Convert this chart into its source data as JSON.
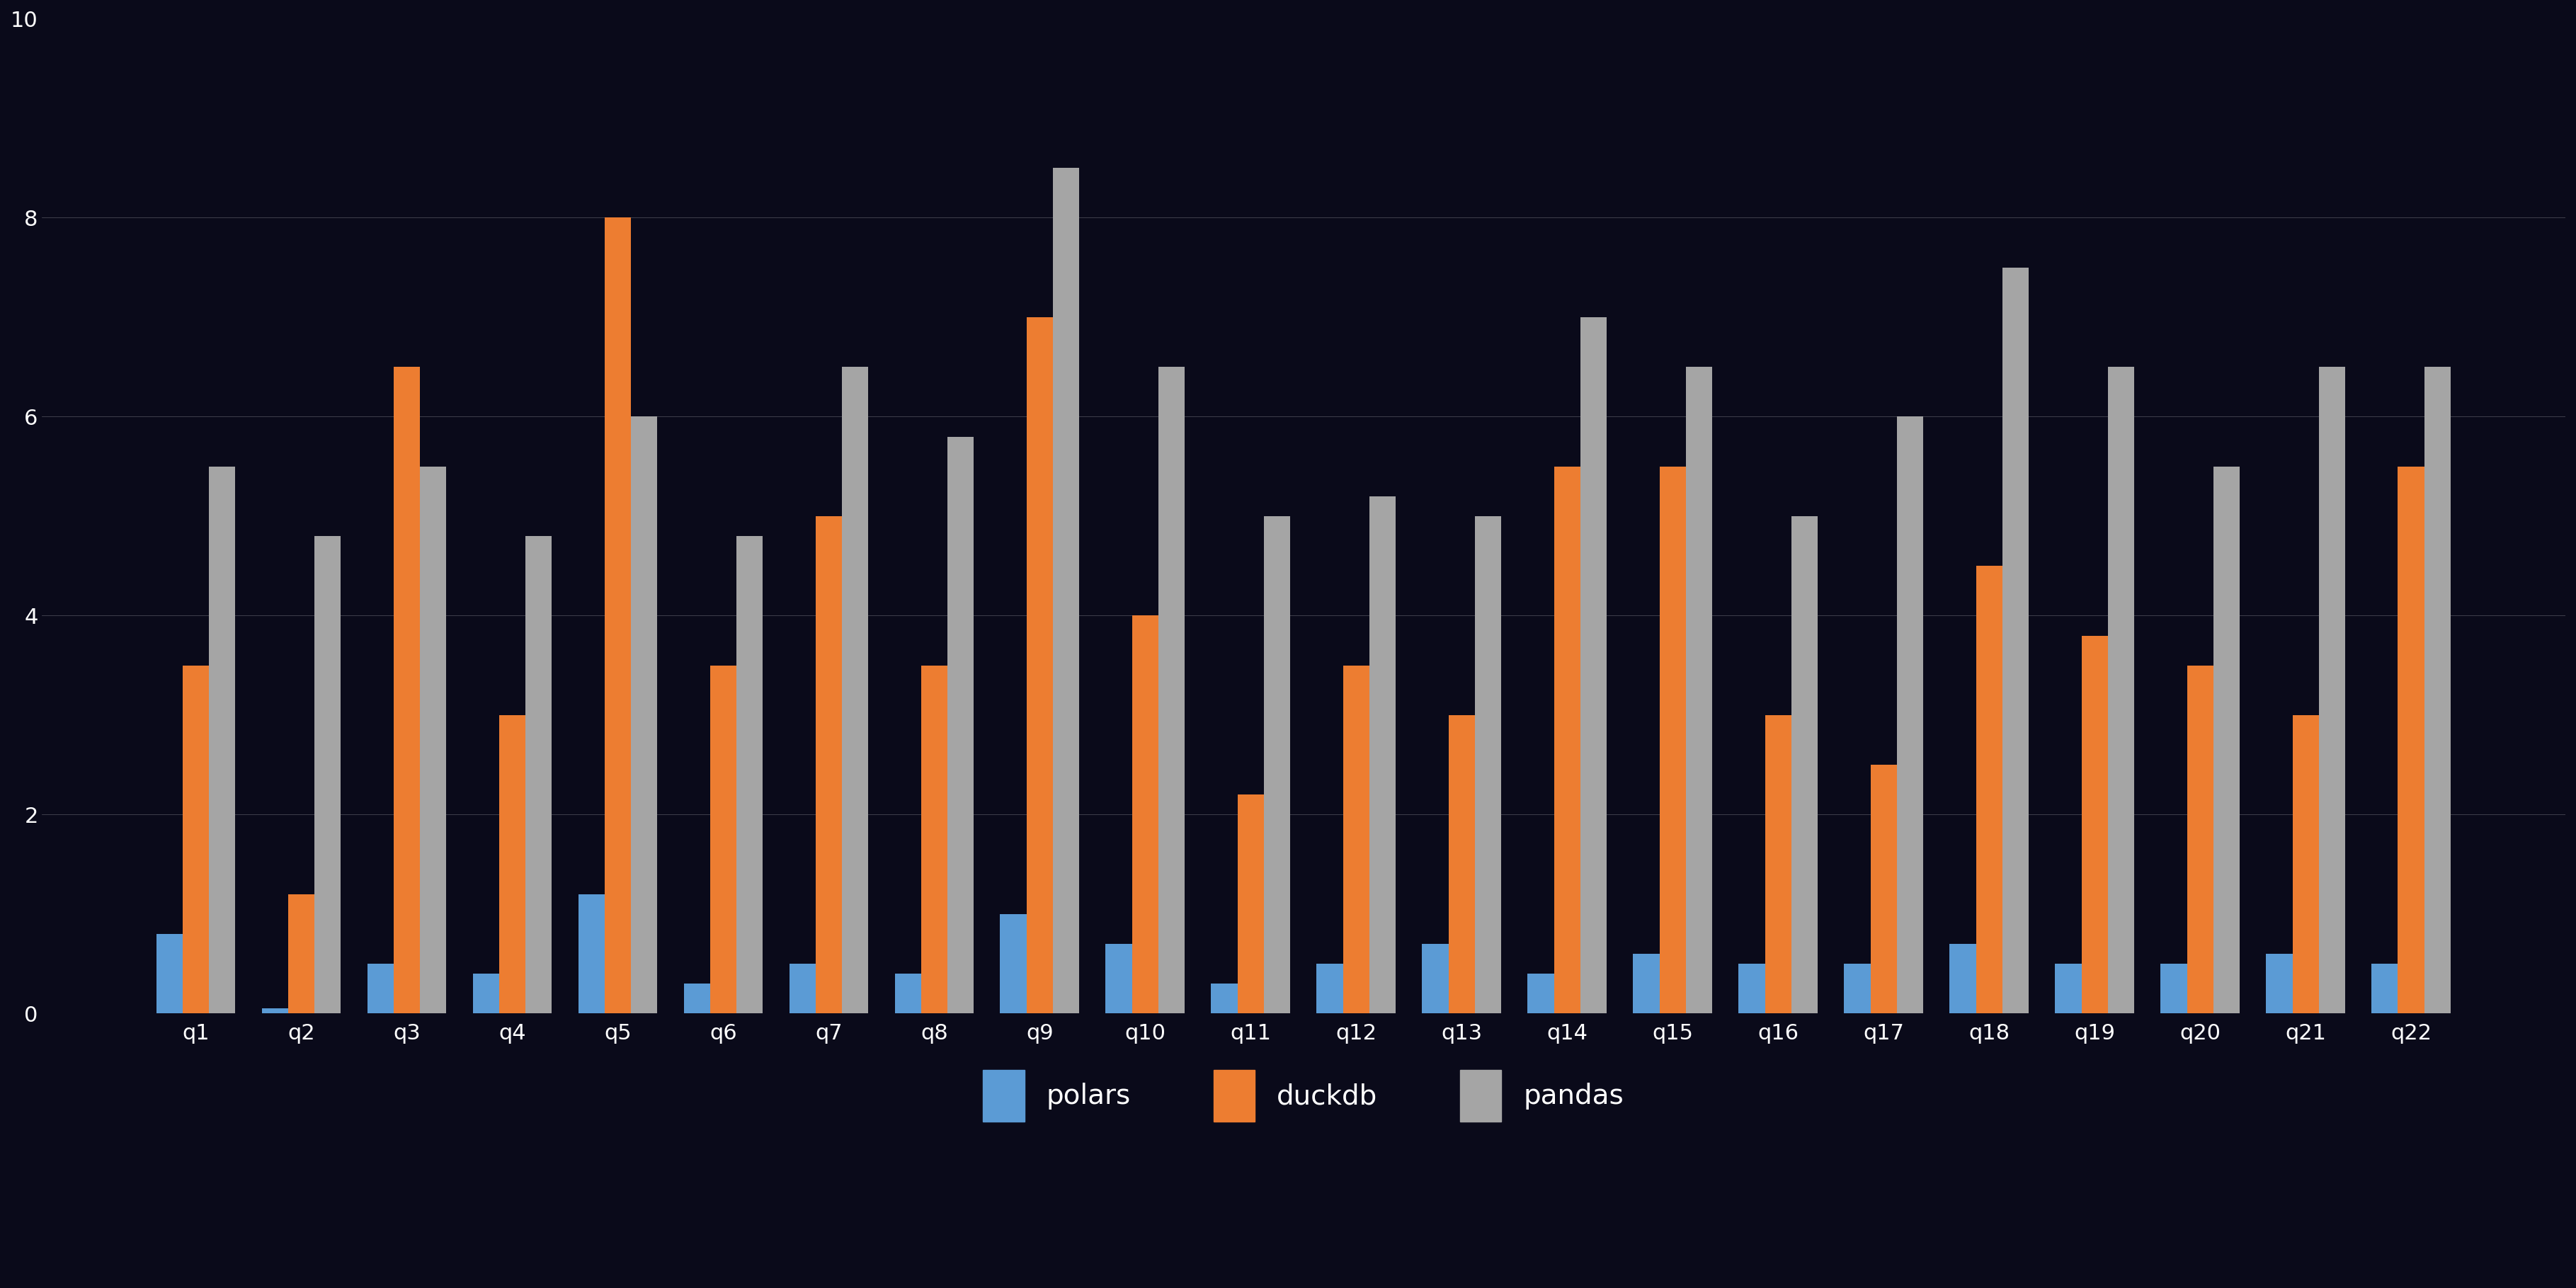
{
  "queries": [
    "q1",
    "q2",
    "q3",
    "q4",
    "q5",
    "q6",
    "q7",
    "q8",
    "q9",
    "q10",
    "q11",
    "q12",
    "q13",
    "q14",
    "q15",
    "q16",
    "q17",
    "q18",
    "q19",
    "q20",
    "q21",
    "q22"
  ],
  "series": [
    {
      "name": "polars",
      "color": "#5B9BD5",
      "values": [
        0.8,
        0.05,
        0.5,
        0.4,
        1.2,
        0.3,
        0.5,
        0.4,
        1.0,
        0.7,
        0.3,
        0.5,
        0.7,
        0.4,
        0.6,
        0.5,
        0.5,
        0.7,
        0.5,
        0.5,
        0.6,
        0.5
      ]
    },
    {
      "name": "duckdb",
      "color": "#ED7D31",
      "values": [
        3.5,
        1.2,
        6.5,
        3.0,
        8.0,
        3.5,
        5.0,
        3.5,
        7.0,
        4.0,
        2.2,
        3.5,
        3.0,
        5.5,
        5.5,
        3.0,
        2.5,
        4.5,
        3.8,
        3.5,
        3.0,
        5.5
      ]
    },
    {
      "name": "pandas",
      "color": "#A5A5A5",
      "values": [
        5.5,
        4.8,
        5.5,
        4.8,
        6.0,
        4.8,
        6.5,
        5.8,
        8.5,
        6.5,
        5.0,
        5.2,
        5.0,
        7.0,
        6.5,
        5.0,
        6.0,
        7.5,
        6.5,
        5.5,
        6.5,
        6.5
      ]
    }
  ],
  "ylim": [
    0,
    10
  ],
  "background_color": "#1a1a2e",
  "plot_bg_color": "#16213e",
  "bar_width": 0.25,
  "legend_labels": [
    "polars",
    "duckdb",
    "pandas"
  ],
  "legend_colors": [
    "#5B9BD5",
    "#ED7D31",
    "#A5A5A5"
  ]
}
